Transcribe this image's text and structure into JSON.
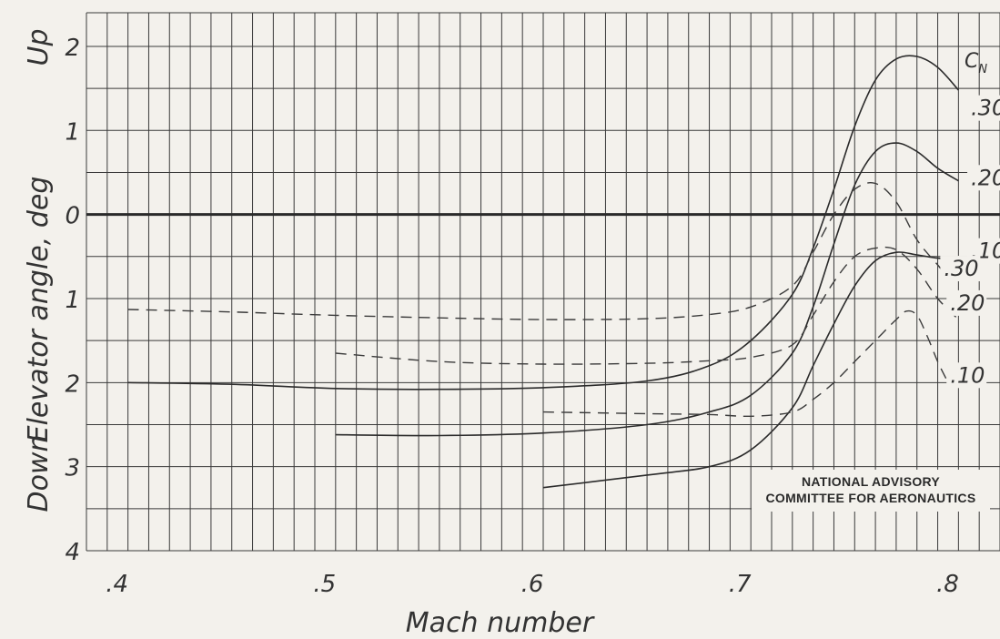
{
  "chart_data": {
    "type": "line",
    "title": "",
    "xlabel": "Mach number",
    "ylabel": "Elevator angle, deg",
    "ylabel_up": "Up",
    "ylabel_down": "Down",
    "xlim": [
      0.38,
      0.82
    ],
    "ylim": [
      -4,
      2.4
    ],
    "x_ticks": [
      {
        "value": 0.4,
        "label": ".4"
      },
      {
        "value": 0.5,
        "label": ".5"
      },
      {
        "value": 0.6,
        "label": ".6"
      },
      {
        "value": 0.7,
        "label": ".7"
      },
      {
        "value": 0.8,
        "label": ".8"
      }
    ],
    "y_ticks": [
      {
        "value": 2,
        "label": "2"
      },
      {
        "value": 1,
        "label": "1"
      },
      {
        "value": 0,
        "label": "0"
      },
      {
        "value": -1,
        "label": "1"
      },
      {
        "value": -2,
        "label": "2"
      },
      {
        "value": -3,
        "label": "3"
      },
      {
        "value": -4,
        "label": "4"
      }
    ],
    "grid": true,
    "legend_title": "C",
    "legend_title_sub": "N",
    "series": [
      {
        "name": ".30",
        "style": "solid",
        "x": [
          0.4,
          0.45,
          0.5,
          0.55,
          0.6,
          0.65,
          0.68,
          0.7,
          0.72,
          0.73,
          0.74,
          0.75,
          0.76,
          0.77,
          0.78,
          0.79,
          0.8
        ],
        "y": [
          -2.0,
          -2.02,
          -2.07,
          -2.08,
          -2.06,
          -1.98,
          -1.8,
          -1.5,
          -0.95,
          -0.4,
          0.3,
          1.05,
          1.6,
          1.85,
          1.88,
          1.75,
          1.48
        ]
      },
      {
        "name": ".20",
        "style": "solid",
        "x": [
          0.5,
          0.55,
          0.6,
          0.65,
          0.68,
          0.7,
          0.72,
          0.73,
          0.74,
          0.75,
          0.76,
          0.77,
          0.78,
          0.79,
          0.8
        ],
        "y": [
          -2.62,
          -2.63,
          -2.6,
          -2.5,
          -2.35,
          -2.15,
          -1.65,
          -1.1,
          -0.35,
          0.35,
          0.75,
          0.85,
          0.75,
          0.55,
          0.4
        ]
      },
      {
        "name": ".10",
        "style": "solid",
        "x": [
          0.6,
          0.65,
          0.68,
          0.7,
          0.72,
          0.73,
          0.74,
          0.75,
          0.76,
          0.77,
          0.78,
          0.79,
          0.8
        ],
        "y": [
          -3.25,
          -3.1,
          -3.0,
          -2.8,
          -2.3,
          -1.8,
          -1.3,
          -0.85,
          -0.55,
          -0.45,
          -0.48,
          -0.52,
          -0.53
        ]
      },
      {
        "name": ".30",
        "style": "dashed",
        "x": [
          0.4,
          0.45,
          0.5,
          0.55,
          0.6,
          0.65,
          0.68,
          0.7,
          0.72,
          0.73,
          0.74,
          0.75,
          0.76,
          0.77,
          0.78,
          0.79,
          0.795
        ],
        "y": [
          -1.13,
          -1.16,
          -1.2,
          -1.23,
          -1.25,
          -1.24,
          -1.19,
          -1.1,
          -0.85,
          -0.45,
          0.0,
          0.3,
          0.37,
          0.15,
          -0.3,
          -0.6,
          -0.75
        ]
      },
      {
        "name": ".20",
        "style": "dashed",
        "x": [
          0.5,
          0.55,
          0.6,
          0.65,
          0.68,
          0.7,
          0.72,
          0.73,
          0.74,
          0.75,
          0.76,
          0.77,
          0.78,
          0.79,
          0.8
        ],
        "y": [
          -1.65,
          -1.75,
          -1.78,
          -1.77,
          -1.74,
          -1.7,
          -1.55,
          -1.2,
          -0.8,
          -0.5,
          -0.4,
          -0.42,
          -0.65,
          -1.0,
          -1.25
        ]
      },
      {
        "name": ".10",
        "style": "dashed",
        "x": [
          0.6,
          0.65,
          0.68,
          0.7,
          0.72,
          0.73,
          0.74,
          0.75,
          0.76,
          0.77,
          0.775,
          0.78,
          0.785,
          0.79,
          0.795
        ],
        "y": [
          -2.35,
          -2.37,
          -2.38,
          -2.4,
          -2.35,
          -2.2,
          -2.0,
          -1.75,
          -1.5,
          -1.25,
          -1.15,
          -1.2,
          -1.45,
          -1.75,
          -2.0
        ]
      }
    ],
    "series_labels": [
      {
        "text": ".30",
        "x": 0.806,
        "y": 1.18
      },
      {
        "text": ".20",
        "x": 0.806,
        "y": 0.35
      },
      {
        "text": ".10",
        "x": 0.806,
        "y": -0.52
      },
      {
        "text": ".30",
        "x": 0.793,
        "y": -0.73
      },
      {
        "text": ".20",
        "x": 0.796,
        "y": -1.14
      },
      {
        "text": ".10",
        "x": 0.796,
        "y": -2.0
      }
    ],
    "annotation_line1": "NATIONAL ADVISORY",
    "annotation_line2": "COMMITTEE FOR AERONAUTICS"
  }
}
